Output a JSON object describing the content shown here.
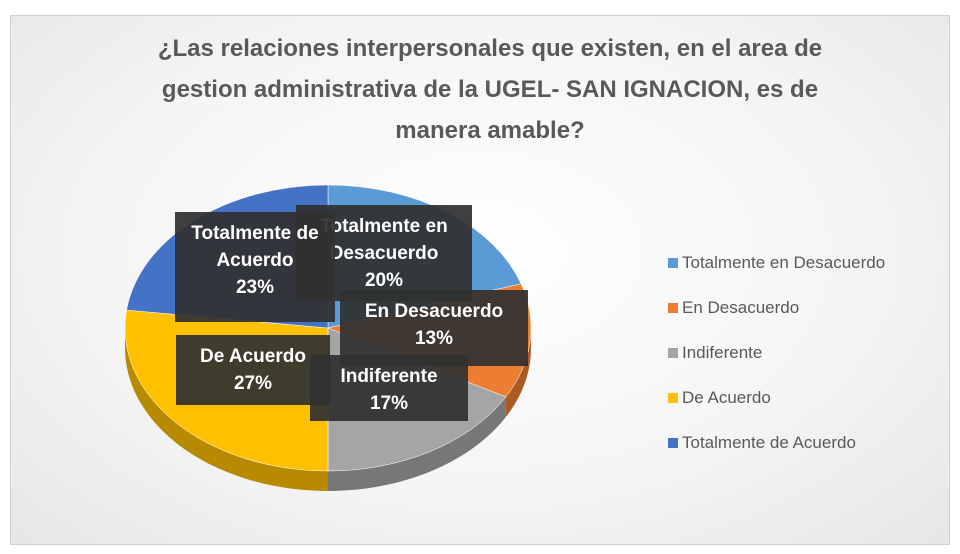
{
  "chart_data": {
    "type": "pie",
    "three_d": true,
    "title": "¿Las relaciones interpersonales que existen, en el area de gestion administrativa de la UGEL- SAN IGNACION, es de manera amable?",
    "categories": [
      "Totalmente en Desacuerdo",
      "En Desacuerdo",
      "Indiferente",
      "De Acuerdo",
      "Totalmente de Acuerdo"
    ],
    "values": [
      20,
      13,
      17,
      27,
      23
    ],
    "value_labels": [
      "20%",
      "13%",
      "17%",
      "27%",
      "23%"
    ],
    "colors": [
      "#5b9bd5",
      "#ed7d31",
      "#a5a5a5",
      "#ffc000",
      "#4472c4"
    ],
    "legend": "right"
  }
}
